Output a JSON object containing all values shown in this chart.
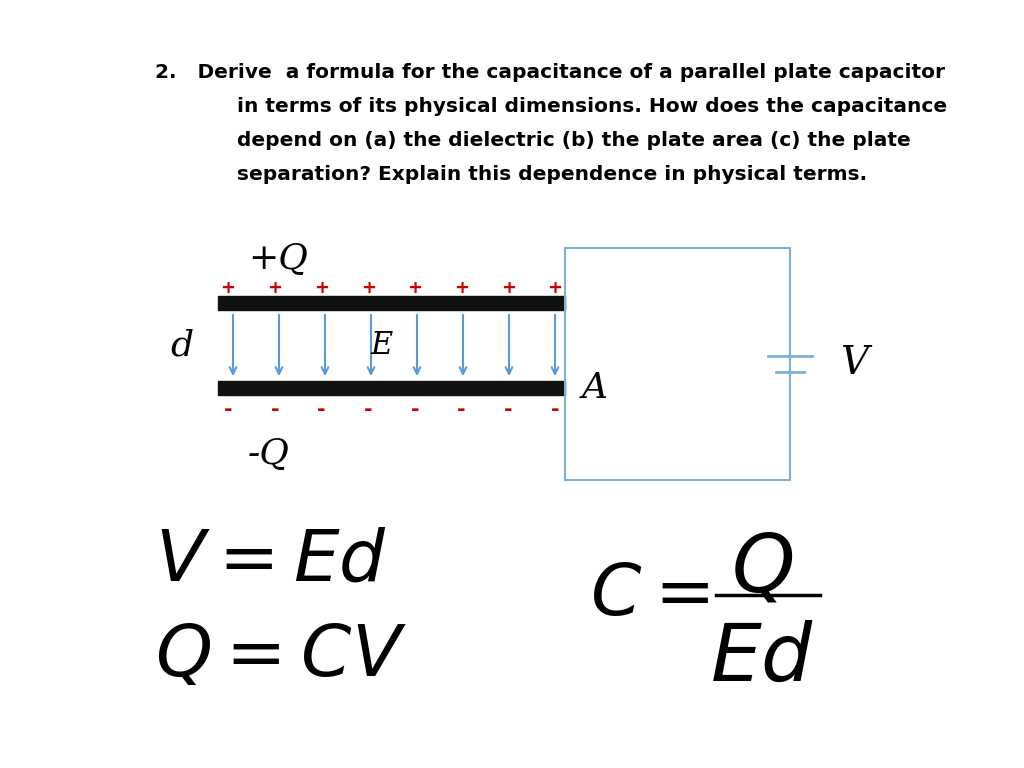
{
  "bg_color": "#ffffff",
  "text_color": "#000000",
  "plate_color": "#111111",
  "arrow_color": "#5b9bd5",
  "plus_color": "#cc0000",
  "minus_color": "#cc0000",
  "circuit_color": "#7ab4d4",
  "label_d": "d",
  "label_E": "E",
  "label_A": "A",
  "label_V": "V",
  "label_plusQ": "+Q",
  "label_minusQ": "-Q",
  "q_text_line1": "2.   Derive  a formula for the capacitance of a parallel plate capacitor",
  "q_text_line2": "      in terms of its physical dimensions. How does the capacitance",
  "q_text_line3": "      depend on (a) the dielectric (b) the plate area (c) the plate",
  "q_text_line4": "      separation? Explain this dependence in physical terms.",
  "fig_width": 10.24,
  "fig_height": 7.68,
  "dpi": 100
}
